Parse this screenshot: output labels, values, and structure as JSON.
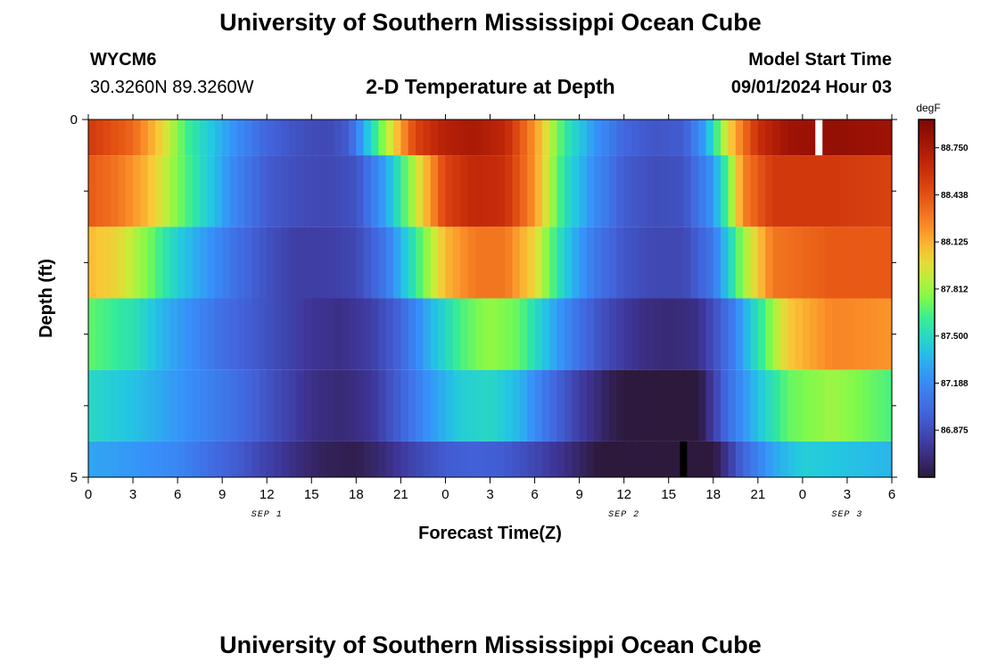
{
  "header": {
    "title": "University of Southern Mississippi Ocean Cube",
    "station_id": "WYCM6",
    "coordinates": "30.3260N  89.3260W",
    "model_start_label": "Model Start Time",
    "model_start_value": "09/01/2024 Hour 03"
  },
  "footer": {
    "title": "University of Southern Mississippi Ocean Cube"
  },
  "chart_data": {
    "type": "heatmap",
    "title": "2-D Temperature at Depth",
    "xlabel": "Forecast Time(Z)",
    "ylabel": "Depth (ft)",
    "xlim": [
      0,
      54
    ],
    "ylim": [
      0,
      5
    ],
    "x_ticks": [
      {
        "pos": 0,
        "label": "0"
      },
      {
        "pos": 3,
        "label": "3"
      },
      {
        "pos": 6,
        "label": "6"
      },
      {
        "pos": 9,
        "label": "9"
      },
      {
        "pos": 12,
        "label": "12"
      },
      {
        "pos": 15,
        "label": "15"
      },
      {
        "pos": 18,
        "label": "18"
      },
      {
        "pos": 21,
        "label": "21"
      },
      {
        "pos": 24,
        "label": "0"
      },
      {
        "pos": 27,
        "label": "3"
      },
      {
        "pos": 30,
        "label": "6"
      },
      {
        "pos": 33,
        "label": "9"
      },
      {
        "pos": 36,
        "label": "12"
      },
      {
        "pos": 39,
        "label": "15"
      },
      {
        "pos": 42,
        "label": "18"
      },
      {
        "pos": 45,
        "label": "21"
      },
      {
        "pos": 48,
        "label": "0"
      },
      {
        "pos": 51,
        "label": "3"
      },
      {
        "pos": 54,
        "label": "6"
      }
    ],
    "date_labels": [
      {
        "pos": 12,
        "label": "SEP 1"
      },
      {
        "pos": 36,
        "label": "SEP 2"
      },
      {
        "pos": 51,
        "label": "SEP 3"
      }
    ],
    "y_tick_labels": [
      {
        "pos": 0,
        "label": "0"
      },
      {
        "pos": 5,
        "label": "5"
      }
    ],
    "y_minor_ticks": [
      1,
      2,
      3,
      4
    ],
    "layers": [
      {
        "top": 0,
        "bottom": 0.5,
        "keys": [
          [
            0,
            88.55
          ],
          [
            3,
            88.35
          ],
          [
            5,
            88.0
          ],
          [
            6.5,
            87.65
          ],
          [
            8,
            87.45
          ],
          [
            10,
            87.2
          ],
          [
            12,
            87.0
          ],
          [
            14,
            86.9
          ],
          [
            16,
            86.85
          ],
          [
            17.5,
            86.95
          ],
          [
            19,
            87.5
          ],
          [
            20.5,
            88.0
          ],
          [
            22,
            88.5
          ],
          [
            24,
            88.7
          ],
          [
            26,
            88.75
          ],
          [
            28,
            88.65
          ],
          [
            30,
            88.2
          ],
          [
            32,
            87.6
          ],
          [
            34,
            87.25
          ],
          [
            36,
            87.0
          ],
          [
            38,
            86.92
          ],
          [
            40,
            86.95
          ],
          [
            41.5,
            87.3
          ],
          [
            43,
            88.0
          ],
          [
            45,
            88.6
          ],
          [
            47,
            88.8
          ],
          [
            50,
            88.85
          ],
          [
            54,
            88.8
          ]
        ]
      },
      {
        "top": 0.5,
        "bottom": 1.5,
        "keys": [
          [
            0,
            88.4
          ],
          [
            2,
            88.3
          ],
          [
            4,
            88.1
          ],
          [
            6,
            87.75
          ],
          [
            8,
            87.45
          ],
          [
            10,
            87.15
          ],
          [
            12,
            86.95
          ],
          [
            14,
            86.88
          ],
          [
            16,
            86.85
          ],
          [
            18,
            86.9
          ],
          [
            20,
            87.3
          ],
          [
            22,
            87.9
          ],
          [
            24,
            88.5
          ],
          [
            26,
            88.65
          ],
          [
            28,
            88.6
          ],
          [
            30,
            88.2
          ],
          [
            32,
            87.55
          ],
          [
            34,
            87.2
          ],
          [
            36,
            86.95
          ],
          [
            38,
            86.88
          ],
          [
            40,
            86.9
          ],
          [
            42,
            87.25
          ],
          [
            43,
            87.7
          ],
          [
            44,
            88.25
          ],
          [
            46,
            88.55
          ],
          [
            50,
            88.55
          ],
          [
            54,
            88.5
          ]
        ]
      },
      {
        "top": 1.5,
        "bottom": 2.5,
        "keys": [
          [
            0,
            88.1
          ],
          [
            2,
            88.0
          ],
          [
            4,
            87.75
          ],
          [
            6,
            87.45
          ],
          [
            8,
            87.25
          ],
          [
            10,
            87.05
          ],
          [
            12,
            86.9
          ],
          [
            14,
            86.8
          ],
          [
            16,
            86.8
          ],
          [
            18,
            86.85
          ],
          [
            20,
            87.1
          ],
          [
            22,
            87.6
          ],
          [
            24,
            88.1
          ],
          [
            26,
            88.3
          ],
          [
            28,
            88.3
          ],
          [
            30,
            88.0
          ],
          [
            32,
            87.45
          ],
          [
            34,
            87.1
          ],
          [
            36,
            86.92
          ],
          [
            38,
            86.85
          ],
          [
            40,
            86.85
          ],
          [
            42,
            87.1
          ],
          [
            44,
            87.8
          ],
          [
            46,
            88.3
          ],
          [
            50,
            88.4
          ],
          [
            54,
            88.4
          ]
        ]
      },
      {
        "top": 2.5,
        "bottom": 3.5,
        "keys": [
          [
            0,
            87.7
          ],
          [
            3,
            87.55
          ],
          [
            5,
            87.35
          ],
          [
            7,
            87.2
          ],
          [
            9,
            87.05
          ],
          [
            11,
            86.95
          ],
          [
            13,
            86.85
          ],
          [
            15,
            86.75
          ],
          [
            17,
            86.72
          ],
          [
            19,
            86.8
          ],
          [
            21,
            87.0
          ],
          [
            23,
            87.35
          ],
          [
            25,
            87.65
          ],
          [
            27,
            87.8
          ],
          [
            29,
            87.7
          ],
          [
            31,
            87.35
          ],
          [
            33,
            87.05
          ],
          [
            35,
            86.85
          ],
          [
            37,
            86.72
          ],
          [
            39,
            86.68
          ],
          [
            41,
            86.72
          ],
          [
            43,
            87.05
          ],
          [
            45,
            87.55
          ],
          [
            47,
            88.05
          ],
          [
            50,
            88.25
          ],
          [
            54,
            88.2
          ]
        ]
      },
      {
        "top": 3.5,
        "bottom": 4.5,
        "keys": [
          [
            0,
            87.5
          ],
          [
            3,
            87.4
          ],
          [
            5,
            87.3
          ],
          [
            7,
            87.2
          ],
          [
            9,
            87.1
          ],
          [
            11,
            86.98
          ],
          [
            13,
            86.85
          ],
          [
            15,
            86.72
          ],
          [
            17,
            86.68
          ],
          [
            19,
            86.75
          ],
          [
            21,
            86.98
          ],
          [
            23,
            87.25
          ],
          [
            25,
            87.45
          ],
          [
            27,
            87.5
          ],
          [
            29,
            87.35
          ],
          [
            31,
            87.05
          ],
          [
            33,
            86.8
          ],
          [
            35,
            86.62
          ],
          [
            37,
            86.52
          ],
          [
            39,
            86.48
          ],
          [
            41,
            86.55
          ],
          [
            43,
            87.05
          ],
          [
            45,
            87.4
          ],
          [
            47,
            87.7
          ],
          [
            50,
            87.82
          ],
          [
            54,
            87.65
          ]
        ]
      },
      {
        "top": 4.5,
        "bottom": 5,
        "keys": [
          [
            0,
            87.3
          ],
          [
            3,
            87.25
          ],
          [
            6,
            87.18
          ],
          [
            8,
            87.05
          ],
          [
            10,
            86.95
          ],
          [
            12,
            86.82
          ],
          [
            14,
            86.7
          ],
          [
            16,
            86.62
          ],
          [
            18,
            86.6
          ],
          [
            20,
            86.7
          ],
          [
            22,
            86.85
          ],
          [
            24,
            86.95
          ],
          [
            26,
            86.98
          ],
          [
            28,
            86.95
          ],
          [
            30,
            86.85
          ],
          [
            32,
            86.72
          ],
          [
            34,
            86.58
          ],
          [
            36,
            86.48
          ],
          [
            38,
            86.43
          ],
          [
            40,
            86.43
          ],
          [
            42,
            86.55
          ],
          [
            44,
            87.0
          ],
          [
            46,
            87.3
          ],
          [
            48,
            87.45
          ],
          [
            50,
            87.42
          ],
          [
            54,
            87.35
          ]
        ]
      }
    ],
    "colorbar": {
      "unit": "degF",
      "min": 86.5625,
      "max": 88.9375,
      "ticks": [
        {
          "value": 88.75,
          "label": "88.750"
        },
        {
          "value": 88.4375,
          "label": "88.438"
        },
        {
          "value": 88.125,
          "label": "88.125"
        },
        {
          "value": 87.8125,
          "label": "87.812"
        },
        {
          "value": 87.5,
          "label": "87.500"
        },
        {
          "value": 87.1875,
          "label": "87.188"
        },
        {
          "value": 86.875,
          "label": "86.875"
        }
      ]
    },
    "markers": [
      {
        "name": "max",
        "time": 49.1,
        "depth_top": 0,
        "depth_bottom": 0.5,
        "color": "#ffffff"
      },
      {
        "name": "min",
        "time": 40.0,
        "depth_top": 4.5,
        "depth_bottom": 5,
        "color": "#000000"
      }
    ]
  }
}
